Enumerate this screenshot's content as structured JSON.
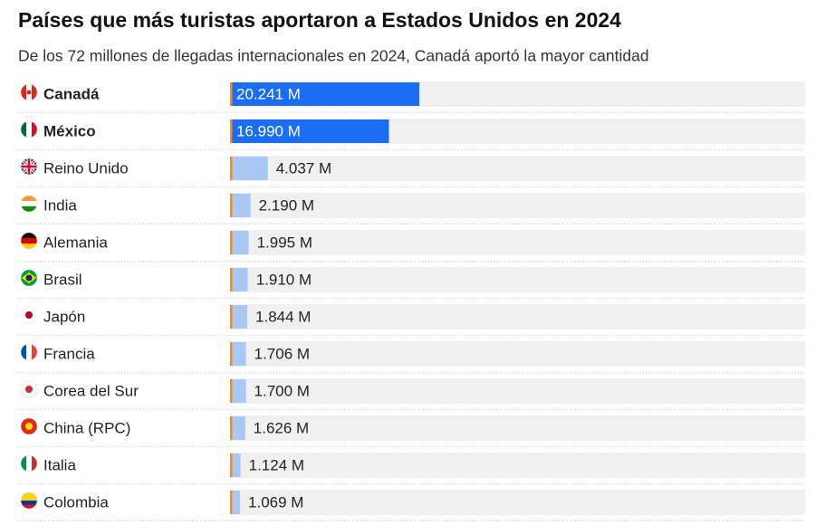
{
  "chart_data": {
    "type": "bar",
    "orientation": "horizontal",
    "title": "Países que más turistas aportaron a Estados Unidos en 2024",
    "subtitle": "De los 72 millones de llegadas internacionales en 2024, Canadá aportó la mayor cantidad",
    "categories": [
      "Canadá",
      "México",
      "Reino Unido",
      "India",
      "Alemania",
      "Brasil",
      "Japón",
      "Francia",
      "Corea del Sur",
      "China (RPC)",
      "Italia",
      "Colombia"
    ],
    "values": [
      20.241,
      16.99,
      4.037,
      2.19,
      1.995,
      1.91,
      1.844,
      1.706,
      1.7,
      1.626,
      1.124,
      1.069
    ],
    "value_labels": [
      "20.241 M",
      "16.990 M",
      "4.037 M",
      "2.190 M",
      "1.995 M",
      "1.910 M",
      "1.844 M",
      "1.706 M",
      "1.700 M",
      "1.626 M",
      "1.124 M",
      "1.069 M"
    ],
    "highlighted": [
      true,
      true,
      false,
      false,
      false,
      false,
      false,
      false,
      false,
      false,
      false,
      false
    ],
    "color": "#a9c8f6",
    "highlight_color": "#1b6ef3",
    "baseline_color": "#e8902a"
  }
}
